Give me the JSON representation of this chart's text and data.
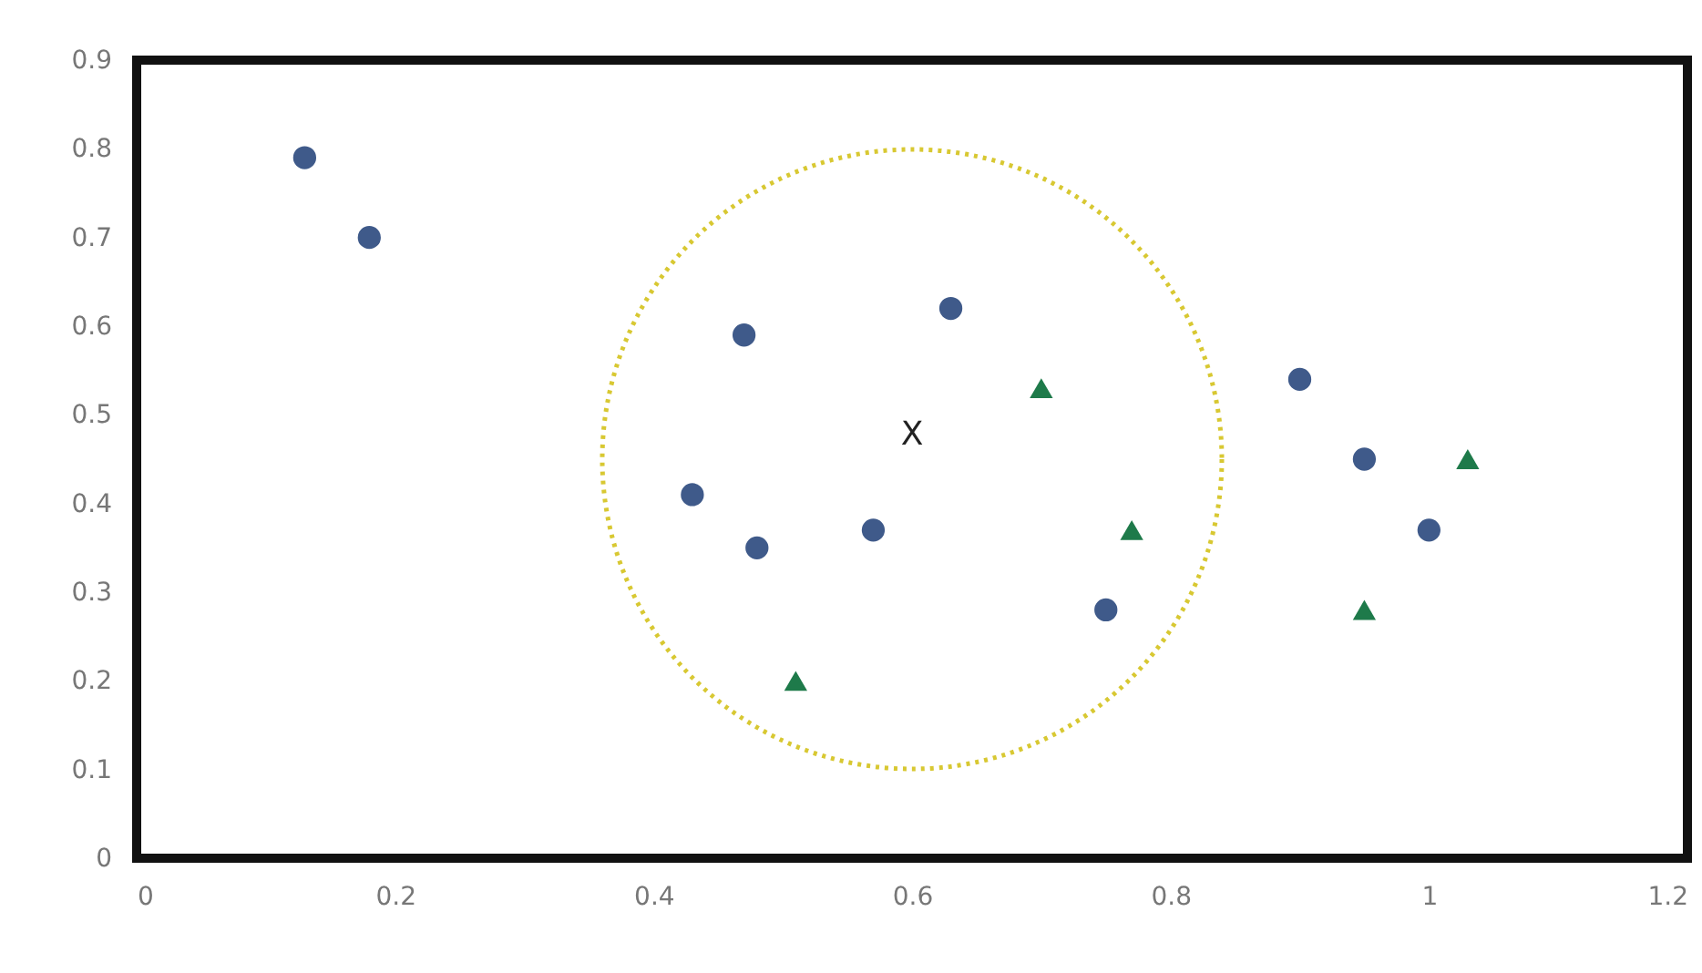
{
  "chart_data": {
    "type": "scatter",
    "xlim": [
      0,
      1.2
    ],
    "ylim": [
      0,
      0.9
    ],
    "xticks": [
      0,
      0.2,
      0.4,
      0.6,
      0.8,
      1,
      1.2
    ],
    "yticks": [
      0,
      0.1,
      0.2,
      0.3,
      0.4,
      0.5,
      0.6,
      0.7,
      0.8,
      0.9
    ],
    "series": [
      {
        "marker": "circle",
        "color": "#3f5a8a",
        "x": [
          0.13,
          0.18,
          0.47,
          0.43,
          0.48,
          0.57,
          0.63,
          0.75,
          0.9,
          0.95,
          1.0
        ],
        "values": [
          0.79,
          0.7,
          0.59,
          0.41,
          0.35,
          0.37,
          0.62,
          0.28,
          0.54,
          0.45,
          0.37
        ]
      },
      {
        "marker": "triangle",
        "color": "#1e7a4a",
        "x": [
          0.51,
          0.7,
          0.77,
          1.03,
          0.95
        ],
        "values": [
          0.2,
          0.53,
          0.37,
          0.45,
          0.28
        ]
      }
    ],
    "annotations": [
      "X"
    ]
  }
}
